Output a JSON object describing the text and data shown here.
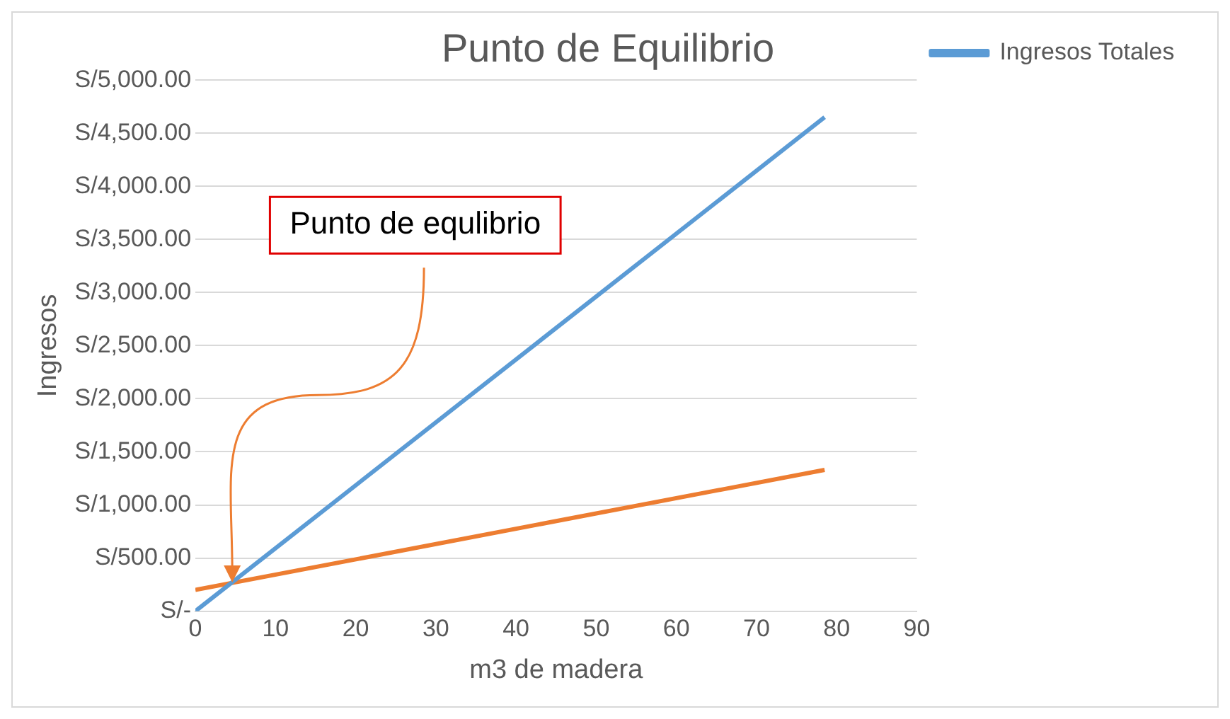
{
  "chart_data": {
    "type": "line",
    "title": "Punto de Equilibrio",
    "xlabel": "m3 de madera",
    "ylabel": "Ingresos",
    "series": [
      {
        "name": "Ingresos Totales",
        "color": "#5b9bd5",
        "values": [
          0,
          4650
        ]
      },
      {
        "color": "#ed7d31",
        "values": [
          200,
          1330
        ]
      }
    ],
    "x": [
      0,
      78.5
    ],
    "xlim": [
      0,
      90
    ],
    "xticks": [
      0,
      10,
      20,
      30,
      40,
      50,
      60,
      70,
      80,
      90
    ],
    "ylim": [
      0,
      5000
    ],
    "yticks": [
      {
        "value": 0,
        "label": "S/-"
      },
      {
        "value": 500,
        "label": "S/500.00"
      },
      {
        "value": 1000,
        "label": "S/1,000.00"
      },
      {
        "value": 1500,
        "label": "S/1,500.00"
      },
      {
        "value": 2000,
        "label": "S/2,000.00"
      },
      {
        "value": 2500,
        "label": "S/2,500.00"
      },
      {
        "value": 3000,
        "label": "S/3,000.00"
      },
      {
        "value": 3500,
        "label": "S/3,500.00"
      },
      {
        "value": 4000,
        "label": "S/4,000.00"
      },
      {
        "value": 4500,
        "label": "S/4,500.00"
      },
      {
        "value": 5000,
        "label": "S/5,000.00"
      }
    ],
    "annotations": [
      {
        "text": "Punto de equlibrio",
        "x": 4.6,
        "y": 270
      }
    ],
    "grid": "y",
    "legend": "right",
    "marker": "none",
    "line_style": "solid"
  }
}
